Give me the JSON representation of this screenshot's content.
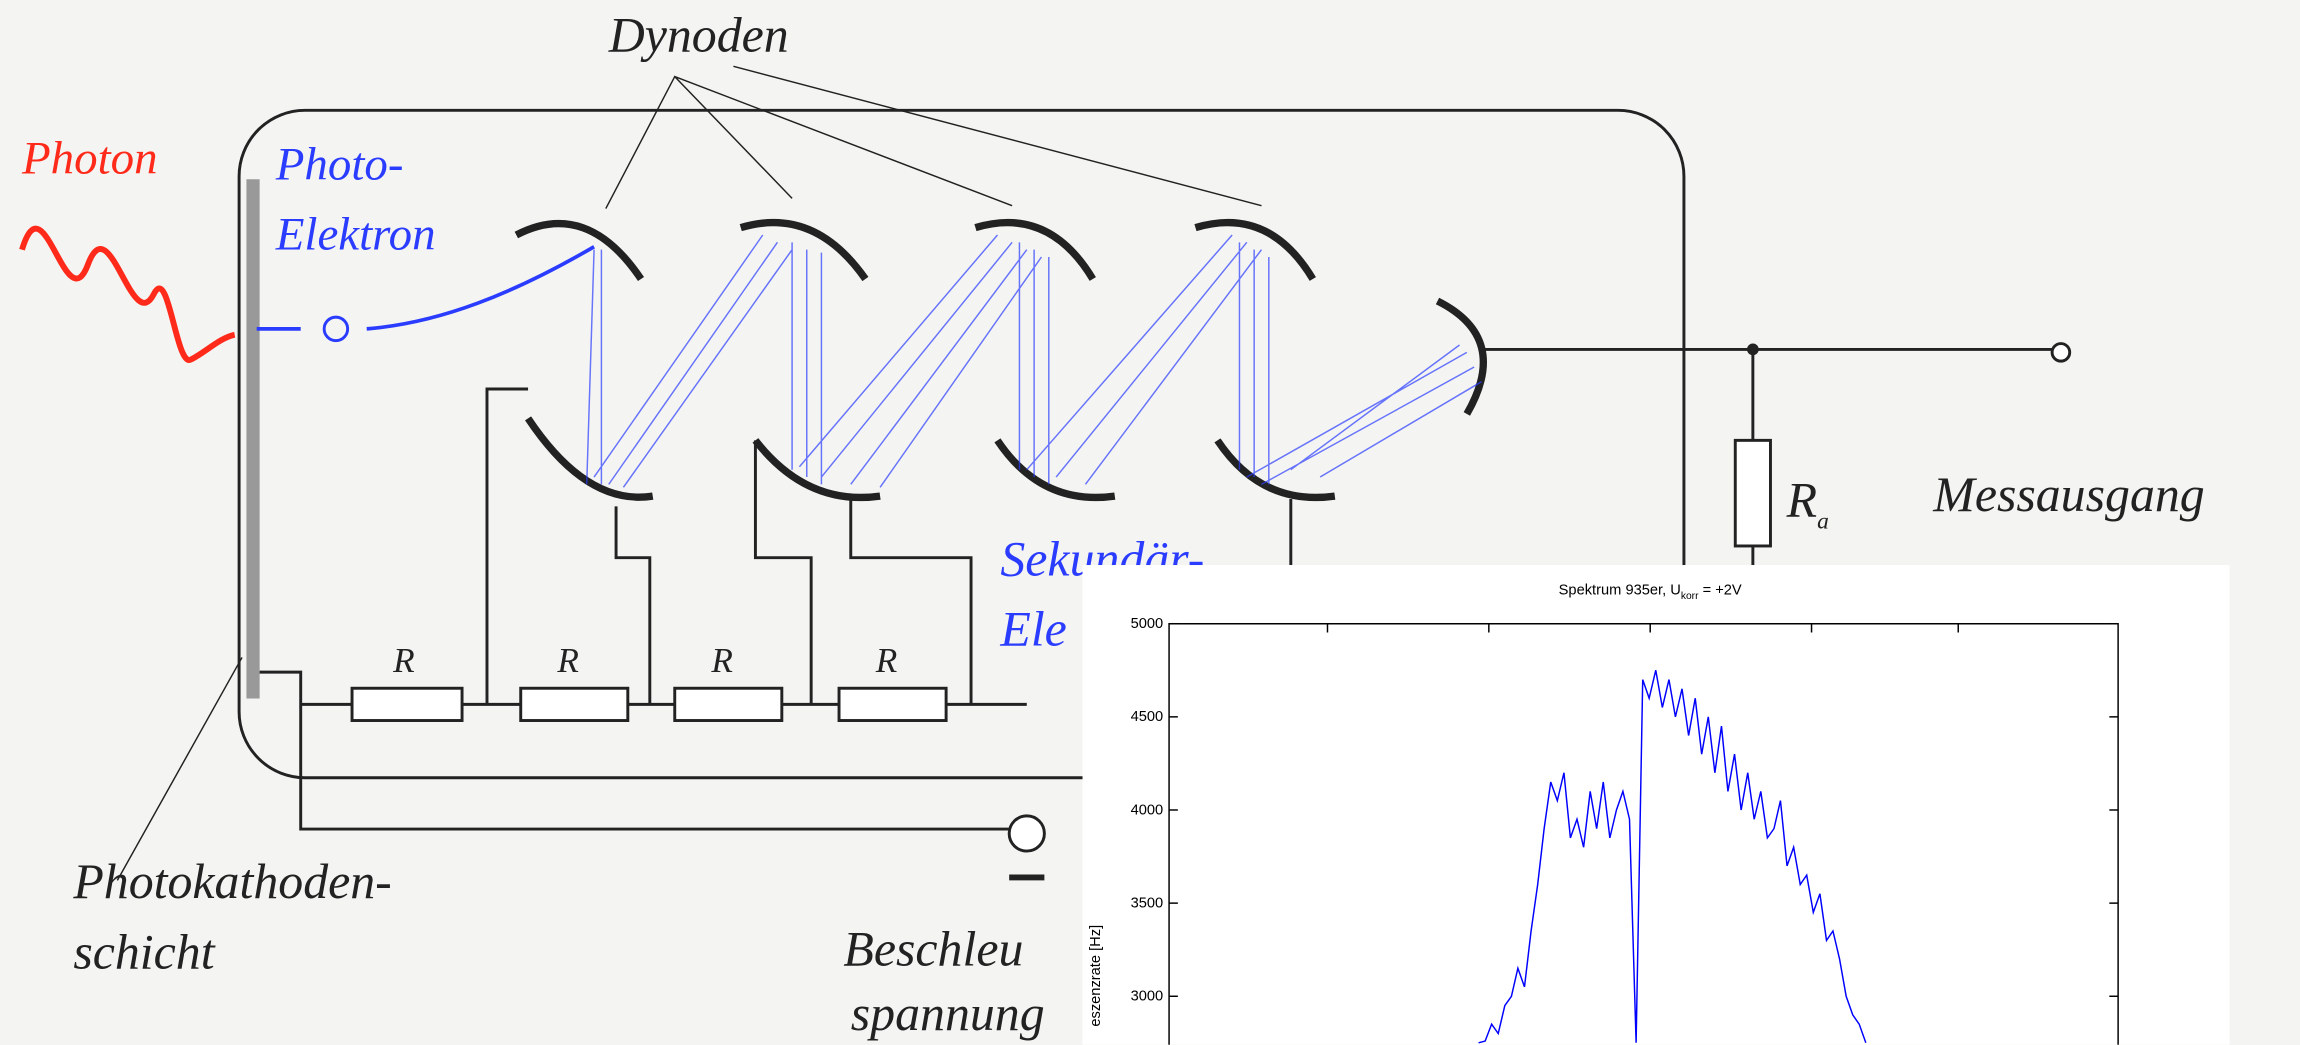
{
  "diagram": {
    "labels": {
      "dynodes": "Dynoden",
      "photon": "Photon",
      "photoelectron_1": "Photo-",
      "photoelectron_2": "Elektron",
      "secondary_1": "Sekundär-",
      "secondary_2": "Ele",
      "resistors": [
        "R",
        "R",
        "R",
        "R"
      ],
      "ra": "R",
      "ra_sub": "a",
      "output": "Messausgang",
      "cathode_1": "Photokathoden-",
      "cathode_2": "schicht",
      "voltage_1": "Beschleu",
      "voltage_2": "spannung"
    }
  },
  "chart_data": {
    "type": "line",
    "title": "Spektrum 935er, U",
    "title_sub": "korr",
    "title_end": " = +2V",
    "ylabel": "eszenzrate [Hz]",
    "color": "#0000ff",
    "ylim": [
      2740,
      5000
    ],
    "yticks": [
      3000,
      3500,
      4000,
      4500,
      5000
    ],
    "values": [
      2750,
      2760,
      2850,
      2800,
      2950,
      3000,
      3150,
      3050,
      3350,
      3600,
      3900,
      4150,
      4050,
      4200,
      3850,
      3950,
      3800,
      4100,
      3900,
      4150,
      3850,
      4000,
      4100,
      3950,
      2750,
      4700,
      4600,
      4750,
      4550,
      4700,
      4500,
      4650,
      4400,
      4600,
      4300,
      4500,
      4200,
      4450,
      4100,
      4300,
      4000,
      4200,
      3950,
      4100,
      3850,
      3900,
      4050,
      3700,
      3800,
      3600,
      3650,
      3450,
      3550,
      3300,
      3350,
      3200,
      3000,
      2900,
      2850,
      2750
    ]
  }
}
